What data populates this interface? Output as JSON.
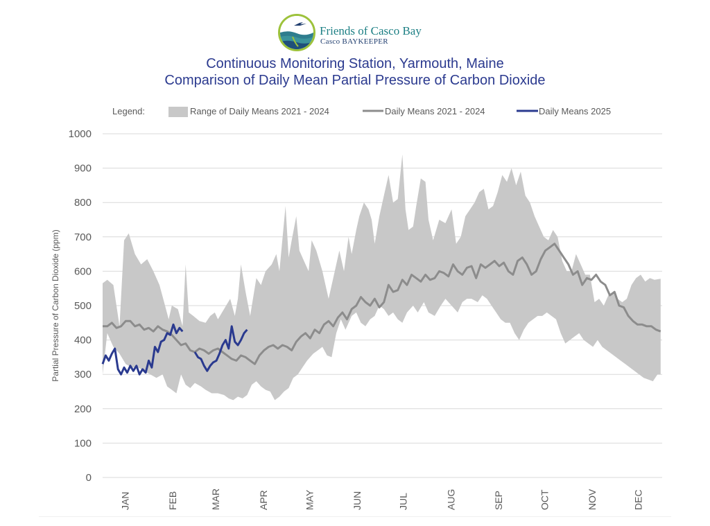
{
  "logo": {
    "name": "Friends of Casco Bay",
    "subname": "Casco BAYKEEPER"
  },
  "title_line1": "Continuous Monitoring Station, Yarmouth, Maine",
  "title_line2": "Comparison of Daily Mean Partial Pressure of Carbon Dioxide",
  "colors": {
    "range_band": "#c8c8c8",
    "historic_line": "#8c8c8c",
    "current_line": "#2a3a8f",
    "grid": "#d9d9d9",
    "axis_text": "#595959",
    "title": "#2b3a8f"
  },
  "chart_data": {
    "type": "area",
    "title": "Comparison of Daily Mean Partial Pressure of Carbon Dioxide",
    "ylabel": "Partial Pressure of Carbon Dioxide (ppm)",
    "xlabel": "",
    "ylim": [
      0,
      1000
    ],
    "yticks": [
      0,
      100,
      200,
      300,
      400,
      500,
      600,
      700,
      800,
      900,
      1000
    ],
    "months": [
      "JAN",
      "FEB",
      "MAR",
      "APR",
      "MAY",
      "JUN",
      "JUL",
      "AUG",
      "SEP",
      "OCT",
      "NOV",
      "DEC"
    ],
    "grid": true,
    "legend_position": "top",
    "legend": {
      "label": "Legend:",
      "range": "Range of Daily Means 2021 - 2024",
      "historic": "Daily Means 2021 - 2024",
      "current": "Daily Means 2025"
    },
    "range_upper": [
      [
        1,
        565
      ],
      [
        4,
        575
      ],
      [
        8,
        560
      ],
      [
        12,
        440
      ],
      [
        15,
        690
      ],
      [
        18,
        710
      ],
      [
        22,
        650
      ],
      [
        26,
        620
      ],
      [
        30,
        635
      ],
      [
        34,
        600
      ],
      [
        38,
        560
      ],
      [
        41,
        510
      ],
      [
        44,
        460
      ],
      [
        46,
        500
      ],
      [
        50,
        490
      ],
      [
        53,
        440
      ],
      [
        55,
        620
      ],
      [
        57,
        480
      ],
      [
        60,
        470
      ],
      [
        64,
        455
      ],
      [
        68,
        450
      ],
      [
        71,
        470
      ],
      [
        74,
        480
      ],
      [
        76,
        460
      ],
      [
        80,
        490
      ],
      [
        84,
        520
      ],
      [
        87,
        470
      ],
      [
        89,
        520
      ],
      [
        91,
        620
      ],
      [
        94,
        540
      ],
      [
        97,
        470
      ],
      [
        101,
        580
      ],
      [
        104,
        560
      ],
      [
        107,
        600
      ],
      [
        111,
        620
      ],
      [
        114,
        650
      ],
      [
        116,
        600
      ],
      [
        120,
        790
      ],
      [
        122,
        640
      ],
      [
        124,
        690
      ],
      [
        127,
        760
      ],
      [
        129,
        660
      ],
      [
        132,
        630
      ],
      [
        135,
        600
      ],
      [
        137,
        690
      ],
      [
        140,
        660
      ],
      [
        144,
        600
      ],
      [
        148,
        520
      ],
      [
        151,
        580
      ],
      [
        155,
        660
      ],
      [
        158,
        600
      ],
      [
        161,
        700
      ],
      [
        163,
        650
      ],
      [
        166,
        720
      ],
      [
        168,
        760
      ],
      [
        171,
        800
      ],
      [
        174,
        780
      ],
      [
        176,
        750
      ],
      [
        178,
        680
      ],
      [
        181,
        760
      ],
      [
        184,
        820
      ],
      [
        187,
        880
      ],
      [
        190,
        800
      ],
      [
        193,
        810
      ],
      [
        196,
        940
      ],
      [
        198,
        780
      ],
      [
        200,
        720
      ],
      [
        203,
        730
      ],
      [
        205,
        790
      ],
      [
        208,
        870
      ],
      [
        211,
        860
      ],
      [
        213,
        750
      ],
      [
        216,
        690
      ],
      [
        220,
        750
      ],
      [
        224,
        740
      ],
      [
        228,
        780
      ],
      [
        231,
        680
      ],
      [
        234,
        700
      ],
      [
        237,
        760
      ],
      [
        240,
        780
      ],
      [
        243,
        800
      ],
      [
        246,
        830
      ],
      [
        249,
        840
      ],
      [
        252,
        780
      ],
      [
        255,
        790
      ],
      [
        258,
        830
      ],
      [
        261,
        880
      ],
      [
        264,
        860
      ],
      [
        267,
        900
      ],
      [
        270,
        850
      ],
      [
        273,
        890
      ],
      [
        276,
        820
      ],
      [
        279,
        800
      ],
      [
        282,
        760
      ],
      [
        285,
        730
      ],
      [
        288,
        700
      ],
      [
        291,
        690
      ],
      [
        294,
        720
      ],
      [
        297,
        700
      ],
      [
        300,
        630
      ],
      [
        303,
        600
      ],
      [
        306,
        600
      ],
      [
        309,
        650
      ],
      [
        312,
        620
      ],
      [
        315,
        590
      ],
      [
        318,
        590
      ],
      [
        321,
        510
      ],
      [
        324,
        520
      ],
      [
        327,
        500
      ],
      [
        330,
        530
      ],
      [
        333,
        540
      ],
      [
        336,
        520
      ],
      [
        339,
        510
      ],
      [
        342,
        520
      ],
      [
        345,
        560
      ],
      [
        348,
        580
      ],
      [
        351,
        590
      ],
      [
        354,
        570
      ],
      [
        357,
        580
      ],
      [
        360,
        575
      ],
      [
        364,
        578
      ]
    ],
    "range_lower": [
      [
        1,
        300
      ],
      [
        4,
        420
      ],
      [
        8,
        380
      ],
      [
        12,
        360
      ],
      [
        16,
        330
      ],
      [
        20,
        320
      ],
      [
        24,
        320
      ],
      [
        28,
        310
      ],
      [
        32,
        300
      ],
      [
        36,
        290
      ],
      [
        40,
        300
      ],
      [
        43,
        265
      ],
      [
        46,
        255
      ],
      [
        49,
        245
      ],
      [
        52,
        300
      ],
      [
        55,
        270
      ],
      [
        58,
        260
      ],
      [
        61,
        275
      ],
      [
        65,
        265
      ],
      [
        68,
        255
      ],
      [
        72,
        245
      ],
      [
        76,
        245
      ],
      [
        80,
        240
      ],
      [
        83,
        230
      ],
      [
        86,
        225
      ],
      [
        89,
        235
      ],
      [
        92,
        230
      ],
      [
        95,
        240
      ],
      [
        98,
        270
      ],
      [
        101,
        280
      ],
      [
        104,
        265
      ],
      [
        107,
        255
      ],
      [
        110,
        250
      ],
      [
        113,
        225
      ],
      [
        116,
        235
      ],
      [
        119,
        250
      ],
      [
        122,
        260
      ],
      [
        125,
        290
      ],
      [
        128,
        300
      ],
      [
        131,
        320
      ],
      [
        134,
        340
      ],
      [
        138,
        360
      ],
      [
        141,
        370
      ],
      [
        144,
        380
      ],
      [
        147,
        355
      ],
      [
        150,
        350
      ],
      [
        153,
        420
      ],
      [
        156,
        460
      ],
      [
        159,
        430
      ],
      [
        163,
        470
      ],
      [
        166,
        480
      ],
      [
        169,
        450
      ],
      [
        172,
        440
      ],
      [
        175,
        460
      ],
      [
        178,
        470
      ],
      [
        181,
        500
      ],
      [
        184,
        490
      ],
      [
        187,
        470
      ],
      [
        190,
        480
      ],
      [
        193,
        460
      ],
      [
        196,
        450
      ],
      [
        199,
        480
      ],
      [
        203,
        500
      ],
      [
        206,
        480
      ],
      [
        210,
        510
      ],
      [
        213,
        480
      ],
      [
        217,
        470
      ],
      [
        221,
        500
      ],
      [
        224,
        520
      ],
      [
        228,
        500
      ],
      [
        232,
        480
      ],
      [
        235,
        510
      ],
      [
        238,
        520
      ],
      [
        241,
        520
      ],
      [
        245,
        510
      ],
      [
        248,
        530
      ],
      [
        251,
        520
      ],
      [
        254,
        500
      ],
      [
        257,
        480
      ],
      [
        260,
        460
      ],
      [
        263,
        450
      ],
      [
        266,
        450
      ],
      [
        269,
        420
      ],
      [
        272,
        400
      ],
      [
        275,
        430
      ],
      [
        278,
        450
      ],
      [
        281,
        460
      ],
      [
        284,
        470
      ],
      [
        287,
        470
      ],
      [
        290,
        480
      ],
      [
        293,
        470
      ],
      [
        296,
        460
      ],
      [
        299,
        420
      ],
      [
        302,
        390
      ],
      [
        305,
        400
      ],
      [
        308,
        410
      ],
      [
        311,
        420
      ],
      [
        314,
        400
      ],
      [
        317,
        390
      ],
      [
        320,
        380
      ],
      [
        323,
        400
      ],
      [
        326,
        380
      ],
      [
        329,
        370
      ],
      [
        332,
        360
      ],
      [
        335,
        350
      ],
      [
        338,
        340
      ],
      [
        341,
        330
      ],
      [
        344,
        320
      ],
      [
        347,
        310
      ],
      [
        350,
        300
      ],
      [
        353,
        290
      ],
      [
        356,
        285
      ],
      [
        359,
        280
      ],
      [
        362,
        300
      ],
      [
        364,
        300
      ]
    ],
    "historic_mean": [
      [
        1,
        440
      ],
      [
        4,
        440
      ],
      [
        7,
        450
      ],
      [
        10,
        435
      ],
      [
        13,
        440
      ],
      [
        16,
        455
      ],
      [
        19,
        455
      ],
      [
        22,
        440
      ],
      [
        25,
        445
      ],
      [
        28,
        430
      ],
      [
        31,
        435
      ],
      [
        34,
        425
      ],
      [
        37,
        440
      ],
      [
        40,
        430
      ],
      [
        43,
        425
      ],
      [
        46,
        415
      ],
      [
        49,
        400
      ],
      [
        52,
        385
      ],
      [
        55,
        390
      ],
      [
        58,
        370
      ],
      [
        61,
        365
      ],
      [
        64,
        375
      ],
      [
        67,
        370
      ],
      [
        70,
        360
      ],
      [
        73,
        370
      ],
      [
        76,
        375
      ],
      [
        79,
        365
      ],
      [
        82,
        355
      ],
      [
        85,
        345
      ],
      [
        88,
        340
      ],
      [
        91,
        355
      ],
      [
        94,
        350
      ],
      [
        97,
        340
      ],
      [
        100,
        330
      ],
      [
        103,
        355
      ],
      [
        106,
        370
      ],
      [
        109,
        380
      ],
      [
        112,
        385
      ],
      [
        115,
        375
      ],
      [
        118,
        385
      ],
      [
        121,
        380
      ],
      [
        124,
        370
      ],
      [
        127,
        395
      ],
      [
        130,
        410
      ],
      [
        133,
        420
      ],
      [
        136,
        405
      ],
      [
        139,
        430
      ],
      [
        142,
        420
      ],
      [
        145,
        445
      ],
      [
        148,
        455
      ],
      [
        151,
        440
      ],
      [
        154,
        465
      ],
      [
        157,
        480
      ],
      [
        160,
        460
      ],
      [
        163,
        490
      ],
      [
        166,
        500
      ],
      [
        169,
        525
      ],
      [
        172,
        510
      ],
      [
        175,
        500
      ],
      [
        178,
        520
      ],
      [
        181,
        495
      ],
      [
        184,
        510
      ],
      [
        187,
        560
      ],
      [
        190,
        540
      ],
      [
        193,
        545
      ],
      [
        196,
        575
      ],
      [
        199,
        560
      ],
      [
        202,
        590
      ],
      [
        205,
        580
      ],
      [
        208,
        570
      ],
      [
        211,
        590
      ],
      [
        214,
        575
      ],
      [
        217,
        580
      ],
      [
        220,
        600
      ],
      [
        223,
        595
      ],
      [
        226,
        585
      ],
      [
        229,
        620
      ],
      [
        232,
        600
      ],
      [
        235,
        590
      ],
      [
        238,
        610
      ],
      [
        241,
        615
      ],
      [
        244,
        580
      ],
      [
        247,
        620
      ],
      [
        250,
        610
      ],
      [
        253,
        620
      ],
      [
        256,
        630
      ],
      [
        259,
        615
      ],
      [
        262,
        625
      ],
      [
        265,
        600
      ],
      [
        268,
        590
      ],
      [
        271,
        630
      ],
      [
        274,
        640
      ],
      [
        277,
        620
      ],
      [
        280,
        590
      ],
      [
        283,
        600
      ],
      [
        286,
        635
      ],
      [
        289,
        660
      ],
      [
        292,
        670
      ],
      [
        295,
        680
      ],
      [
        298,
        660
      ],
      [
        301,
        640
      ],
      [
        304,
        620
      ],
      [
        307,
        590
      ],
      [
        310,
        600
      ],
      [
        313,
        560
      ],
      [
        316,
        580
      ],
      [
        319,
        575
      ],
      [
        322,
        590
      ],
      [
        325,
        570
      ],
      [
        328,
        560
      ],
      [
        331,
        530
      ],
      [
        334,
        540
      ],
      [
        337,
        500
      ],
      [
        340,
        495
      ],
      [
        343,
        470
      ],
      [
        346,
        455
      ],
      [
        349,
        445
      ],
      [
        352,
        445
      ],
      [
        355,
        440
      ],
      [
        358,
        440
      ],
      [
        361,
        430
      ],
      [
        364,
        425
      ]
    ],
    "current_2025_segments": [
      [
        [
          1,
          330
        ],
        [
          3,
          355
        ],
        [
          5,
          340
        ],
        [
          7,
          360
        ],
        [
          9,
          375
        ],
        [
          11,
          315
        ],
        [
          13,
          300
        ],
        [
          15,
          320
        ],
        [
          17,
          305
        ],
        [
          19,
          325
        ],
        [
          21,
          310
        ],
        [
          23,
          325
        ],
        [
          25,
          300
        ],
        [
          27,
          315
        ],
        [
          29,
          305
        ],
        [
          31,
          340
        ],
        [
          33,
          320
        ],
        [
          35,
          380
        ],
        [
          37,
          365
        ],
        [
          39,
          395
        ],
        [
          41,
          400
        ],
        [
          43,
          420
        ],
        [
          45,
          415
        ],
        [
          47,
          445
        ],
        [
          49,
          420
        ],
        [
          51,
          435
        ],
        [
          53,
          425
        ]
      ],
      [
        [
          61,
          365
        ],
        [
          63,
          350
        ],
        [
          65,
          345
        ],
        [
          67,
          325
        ],
        [
          69,
          310
        ],
        [
          71,
          325
        ],
        [
          73,
          335
        ],
        [
          75,
          340
        ],
        [
          77,
          360
        ],
        [
          79,
          385
        ],
        [
          81,
          400
        ],
        [
          83,
          375
        ],
        [
          85,
          440
        ],
        [
          87,
          395
        ],
        [
          89,
          385
        ],
        [
          91,
          400
        ],
        [
          93,
          420
        ],
        [
          95,
          430
        ]
      ]
    ]
  }
}
